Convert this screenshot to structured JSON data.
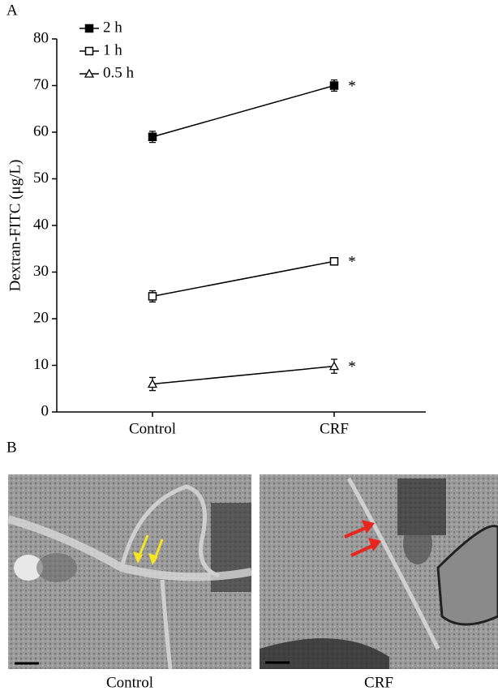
{
  "panel_a": {
    "label": "A"
  },
  "chart_data": {
    "type": "line",
    "y_label": "Dextran-FITC (μg/L)",
    "categories": [
      "Control",
      "CRF"
    ],
    "series": [
      {
        "name": "2 h",
        "color": "#000000",
        "marker": "square-filled",
        "values": [
          59,
          70
        ],
        "errors": [
          1.2,
          1.2
        ]
      },
      {
        "name": "1 h",
        "color": "#000000",
        "marker": "square-open",
        "values": [
          24.8,
          32.3
        ],
        "errors": [
          1.2,
          0.5
        ]
      },
      {
        "name": "0.5 h",
        "color": "#000000",
        "marker": "triangle-open",
        "values": [
          6,
          9.8
        ],
        "errors": [
          1.4,
          1.5
        ]
      }
    ],
    "annotations": [
      "*",
      "*",
      "*"
    ],
    "ylim": [
      0,
      80
    ],
    "yticks": [
      0,
      10,
      20,
      30,
      40,
      50,
      60,
      70,
      80
    ],
    "legend": "top-left"
  },
  "panel_b": {
    "label": "B",
    "captions": [
      "Control",
      "CRF"
    ]
  }
}
